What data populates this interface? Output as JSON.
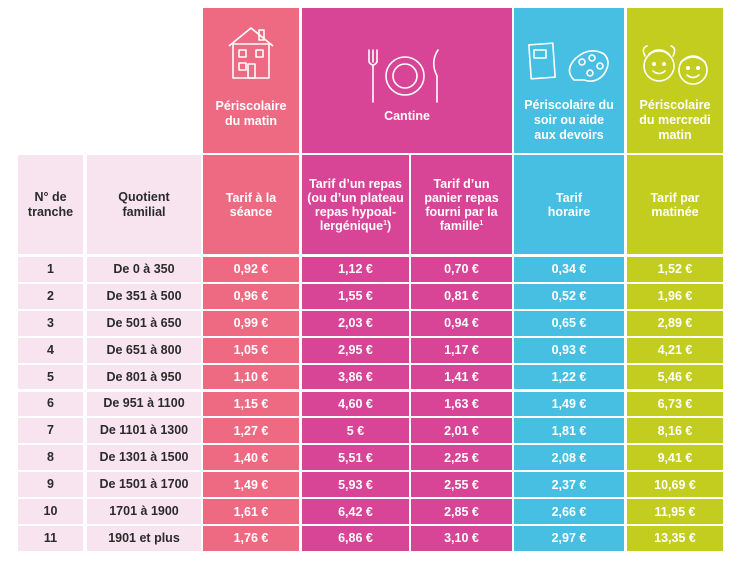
{
  "header": {
    "periscolaire_matin": "Périscolaire du matin",
    "cantine": "Cantine",
    "periscolaire_soir": "Périscolaire du soir ou aide aux devoirs",
    "periscolaire_mercredi": "Périscolaire du mercredi matin"
  },
  "columns": {
    "tranche": "N° de tranche",
    "quotient": "Quotient familial",
    "matin": "Tarif à la séance",
    "repas": "Tarif d’un repas (ou d’un plateau repas hypoal-lergénique",
    "repas_note": "1",
    "panier": "Tarif d’un panier repas fourni par la famille",
    "panier_note": "1",
    "soir": "Tarif horaire",
    "mercredi": "Tarif par matinée"
  },
  "rows": [
    {
      "tranche": "1",
      "quotient": "De 0 à 350",
      "matin": "0,92 €",
      "repas": "1,12 €",
      "panier": "0,70 €",
      "soir": "0,34 €",
      "mercredi": "1,52 €"
    },
    {
      "tranche": "2",
      "quotient": "De 351 à 500",
      "matin": "0,96 €",
      "repas": "1,55 €",
      "panier": "0,81 €",
      "soir": "0,52 €",
      "mercredi": "1,96 €"
    },
    {
      "tranche": "3",
      "quotient": "De 501 à 650",
      "matin": "0,99 €",
      "repas": "2,03 €",
      "panier": "0,94 €",
      "soir": "0,65 €",
      "mercredi": "2,89 €"
    },
    {
      "tranche": "4",
      "quotient": "De 651 à 800",
      "matin": "1,05 €",
      "repas": "2,95 €",
      "panier": "1,17 €",
      "soir": "0,93 €",
      "mercredi": "4,21 €"
    },
    {
      "tranche": "5",
      "quotient": "De 801 à 950",
      "matin": "1,10 €",
      "repas": "3,86 €",
      "panier": "1,41 €",
      "soir": "1,22 €",
      "mercredi": "5,46 €"
    },
    {
      "tranche": "6",
      "quotient": "De 951 à 1100",
      "matin": "1,15 €",
      "repas": "4,60 €",
      "panier": "1,63 €",
      "soir": "1,49 €",
      "mercredi": "6,73 €"
    },
    {
      "tranche": "7",
      "quotient": "De 1101 à 1300",
      "matin": "1,27 €",
      "repas": "5 €",
      "panier": "2,01 €",
      "soir": "1,81 €",
      "mercredi": "8,16 €"
    },
    {
      "tranche": "8",
      "quotient": "De 1301 à 1500",
      "matin": "1,40 €",
      "repas": "5,51 €",
      "panier": "2,25 €",
      "soir": "2,08 €",
      "mercredi": "9,41 €"
    },
    {
      "tranche": "9",
      "quotient": "De 1501 à 1700",
      "matin": "1,49 €",
      "repas": "5,93 €",
      "panier": "2,55 €",
      "soir": "2,37 €",
      "mercredi": "10,69 €"
    },
    {
      "tranche": "10",
      "quotient": "1701 à 1900",
      "matin": "1,61 €",
      "repas": "6,42 €",
      "panier": "2,85 €",
      "soir": "2,66 €",
      "mercredi": "11,95 €"
    },
    {
      "tranche": "11",
      "quotient": "1901 et plus",
      "matin": "1,76 €",
      "repas": "6,86 €",
      "panier": "3,10 €",
      "soir": "2,97 €",
      "mercredi": "13,35 €"
    }
  ],
  "colors": {
    "matin": "#ee6a82",
    "cantine": "#d84597",
    "soir": "#47bfe2",
    "mercredi": "#c2cd1f",
    "side": "#f7e4ee"
  },
  "icons": [
    "house-icon",
    "cutlery-plate-icon",
    "books-paint-icon",
    "children-faces-icon"
  ]
}
